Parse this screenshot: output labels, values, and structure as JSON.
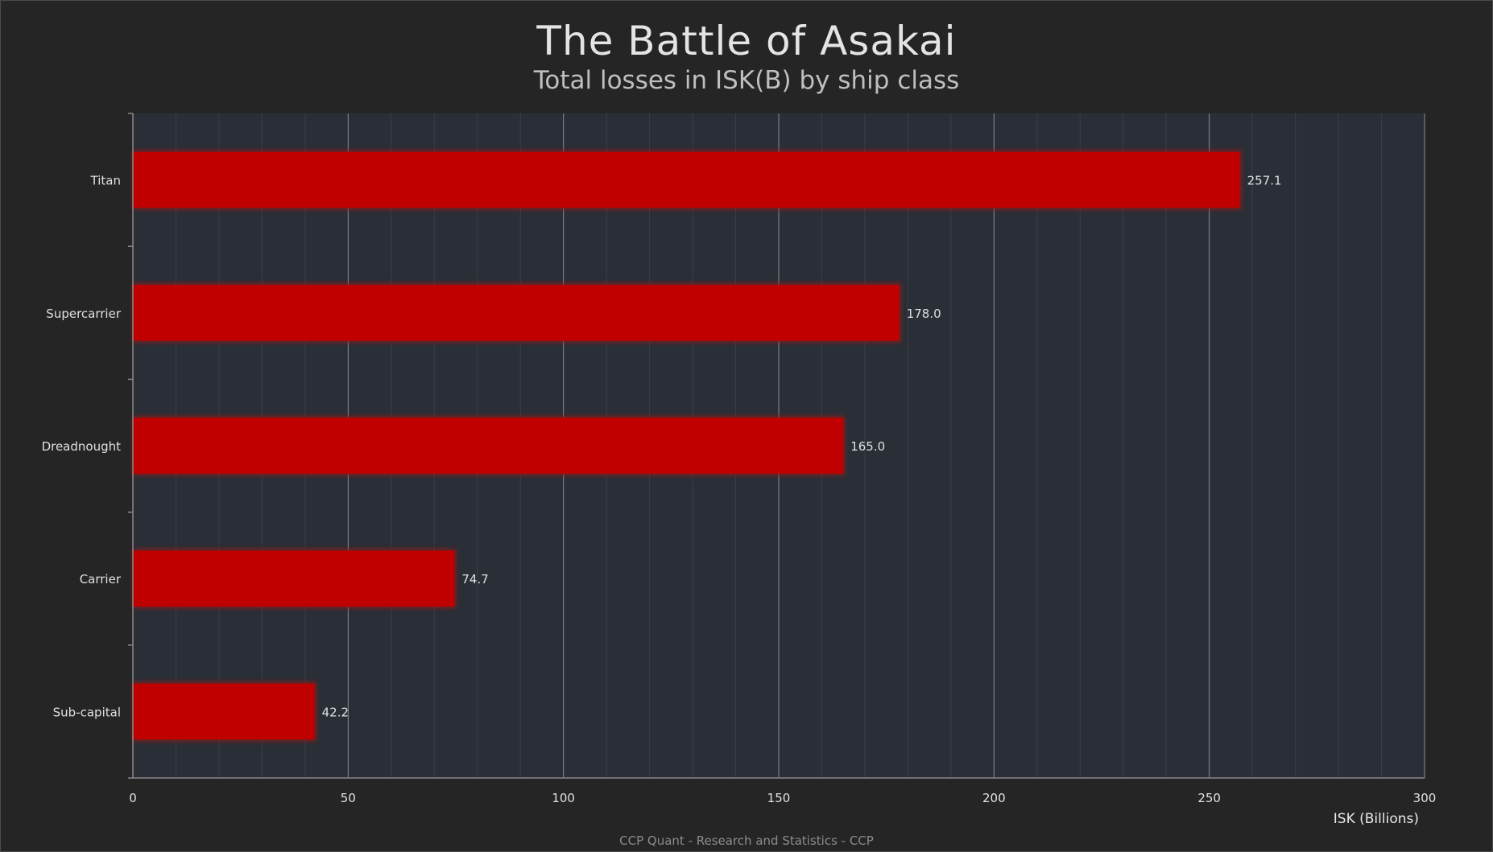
{
  "chart_data": {
    "type": "bar",
    "orientation": "horizontal",
    "title": "The Battle of Asakai",
    "subtitle": "Total losses in ISK(B) by ship class",
    "xlabel": "ISK (Billions)",
    "ylabel": "",
    "categories": [
      "Titan",
      "Supercarrier",
      "Dreadnought",
      "Carrier",
      "Sub-capital"
    ],
    "values": [
      257.1,
      178.0,
      165.0,
      74.7,
      42.2
    ],
    "data_labels": [
      "257.1",
      "178.0",
      "165.0",
      "74.7",
      "42.2"
    ],
    "xlim": [
      0,
      300
    ],
    "xticks": [
      0,
      50,
      100,
      150,
      200,
      250,
      300
    ],
    "xtick_labels": [
      "0",
      "50",
      "100",
      "150",
      "200",
      "250",
      "300"
    ],
    "grid": true,
    "legend": "none",
    "colors": {
      "bar": "#c00000",
      "bar_glow": "#8a1a1a",
      "plot_background": "#2a2f37",
      "page_background": "#252525",
      "major_grid": "#8a8f96",
      "minor_grid": "#3a3f47",
      "text": "#e0e0e0"
    }
  },
  "footer": {
    "credit": "CCP Quant - Research and Statistics - CCP"
  }
}
